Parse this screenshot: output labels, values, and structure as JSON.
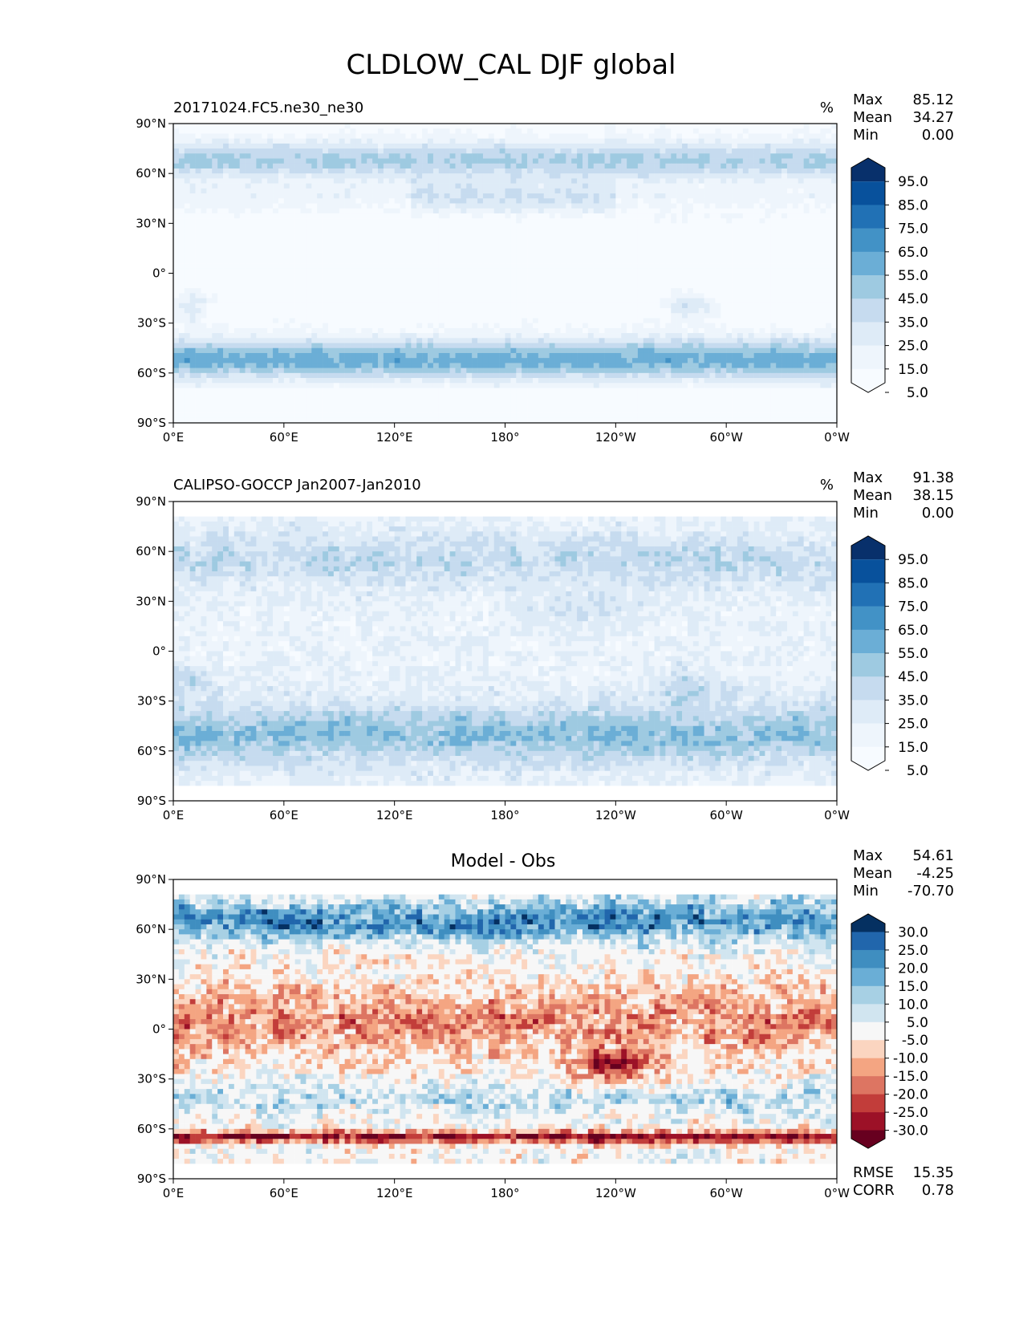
{
  "figure": {
    "title": "CLDLOW_CAL DJF global"
  },
  "chart_data": [
    {
      "type": "heatmap",
      "left_title": "20171024.FC5.ne30_ne30",
      "center_title": "",
      "units": "%",
      "stats": [
        [
          "Max",
          "85.12"
        ],
        [
          "Mean",
          "34.27"
        ],
        [
          "Min",
          "0.00"
        ]
      ],
      "xticks": [
        "0°E",
        "60°E",
        "120°E",
        "180°",
        "120°W",
        "60°W",
        "0°W"
      ],
      "yticks": [
        "90°N",
        "60°N",
        "30°N",
        "0°",
        "30°S",
        "60°S",
        "90°S"
      ],
      "xlim": [
        0,
        360
      ],
      "ylim": [
        -90,
        90
      ],
      "colorbar": {
        "labels": [
          "95.0",
          "85.0",
          "75.0",
          "65.0",
          "55.0",
          "45.0",
          "35.0",
          "25.0",
          "15.0",
          "5.0"
        ],
        "colors": [
          "#08306b",
          "#08519c",
          "#2171b5",
          "#4292c6",
          "#6baed6",
          "#9ecae1",
          "#c6dbef",
          "#deebf7",
          "#eef5fc",
          "#f7fbff"
        ],
        "extend": "both"
      }
    },
    {
      "type": "heatmap",
      "left_title": "CALIPSO-GOCCP Jan2007-Jan2010",
      "center_title": "",
      "units": "%",
      "stats": [
        [
          "Max",
          "91.38"
        ],
        [
          "Mean",
          "38.15"
        ],
        [
          "Min",
          "0.00"
        ]
      ],
      "xticks": [
        "0°E",
        "60°E",
        "120°E",
        "180°",
        "120°W",
        "60°W",
        "0°W"
      ],
      "yticks": [
        "90°N",
        "60°N",
        "30°N",
        "0°",
        "30°S",
        "60°S",
        "90°S"
      ],
      "xlim": [
        0,
        360
      ],
      "ylim": [
        -90,
        90
      ],
      "colorbar": {
        "labels": [
          "95.0",
          "85.0",
          "75.0",
          "65.0",
          "55.0",
          "45.0",
          "35.0",
          "25.0",
          "15.0",
          "5.0"
        ],
        "colors": [
          "#08306b",
          "#08519c",
          "#2171b5",
          "#4292c6",
          "#6baed6",
          "#9ecae1",
          "#c6dbef",
          "#deebf7",
          "#eef5fc",
          "#f7fbff"
        ],
        "extend": "both"
      }
    },
    {
      "type": "heatmap",
      "left_title": "",
      "center_title": "Model - Obs",
      "units": "",
      "stats": [
        [
          "Max",
          "54.61"
        ],
        [
          "Mean",
          "-4.25"
        ],
        [
          "Min",
          "-70.70"
        ]
      ],
      "extra_stats": [
        [
          "RMSE",
          "15.35"
        ],
        [
          "CORR",
          "0.78"
        ]
      ],
      "xticks": [
        "0°E",
        "60°E",
        "120°E",
        "180°",
        "120°W",
        "60°W",
        "0°W"
      ],
      "yticks": [
        "90°N",
        "60°N",
        "30°N",
        "0°",
        "30°S",
        "60°S",
        "90°S"
      ],
      "xlim": [
        0,
        360
      ],
      "ylim": [
        -90,
        90
      ],
      "colorbar": {
        "labels": [
          "30.0",
          "25.0",
          "20.0",
          "15.0",
          "10.0",
          "5.0",
          "-5.0",
          "-10.0",
          "-15.0",
          "-20.0",
          "-25.0",
          "-30.0"
        ],
        "colors": [
          "#053061",
          "#2166ac",
          "#3f8ec0",
          "#6aaed6",
          "#a7d0e4",
          "#d1e5f0",
          "#f7f7f7",
          "#fbd5c0",
          "#f4a582",
          "#dd7562",
          "#c23d3a",
          "#9c1127",
          "#67001f"
        ],
        "extend": "both"
      }
    }
  ]
}
